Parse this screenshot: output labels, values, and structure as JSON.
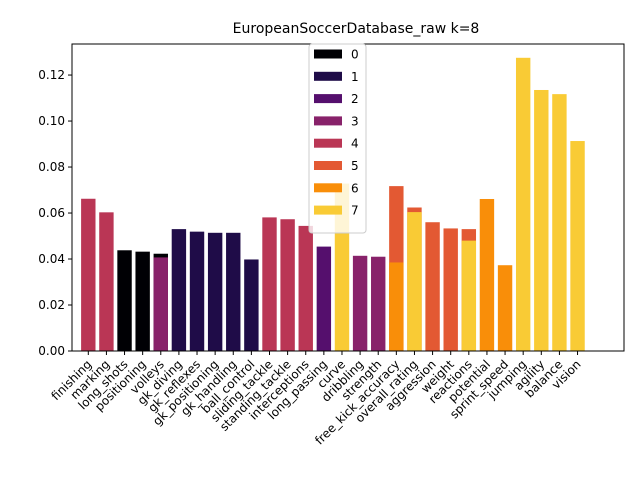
{
  "chart_data": {
    "type": "bar",
    "title": "EuropeanSoccerDatabase_raw k=8",
    "xlabel": "",
    "ylabel": "",
    "ylim": [
      0,
      0.1335
    ],
    "yticks": [
      "0.00",
      "0.02",
      "0.04",
      "0.06",
      "0.08",
      "0.10",
      "0.12"
    ],
    "legend_placement": "upper-center",
    "cluster_colors": [
      "#000004",
      "#1f0c48",
      "#550f6d",
      "#88226a",
      "#ba3655",
      "#e35933",
      "#f98e09",
      "#f9cb35"
    ],
    "legend": [
      "0",
      "1",
      "2",
      "3",
      "4",
      "5",
      "6",
      "7"
    ],
    "categories": [
      "finishing",
      "marking",
      "long_shots",
      "positioning",
      "volleys",
      "gk_diving",
      "gk_reflexes",
      "gk_positioning",
      "gk_handling",
      "ball_control",
      "sliding_tackle",
      "standing_tackle",
      "interceptions",
      "long_passing",
      "curve",
      "dribbling",
      "strength",
      "free_kick_accuracy",
      "overall_rating",
      "aggression",
      "weight",
      "reactions",
      "potential",
      "sprint_speed",
      "jumping",
      "agility",
      "balance",
      "vision"
    ],
    "bars": [
      {
        "category": "finishing",
        "cluster": 4,
        "value": 0.0662
      },
      {
        "category": "marking",
        "cluster": 4,
        "value": 0.0603
      },
      {
        "category": "long_shots",
        "cluster": 0,
        "value": 0.0438
      },
      {
        "category": "positioning",
        "cluster": 0,
        "value": 0.0432
      },
      {
        "category": "volleys",
        "cluster": 0,
        "value": 0.0423
      },
      {
        "category": "volleys",
        "cluster": 3,
        "value": 0.0407
      },
      {
        "category": "gk_diving",
        "cluster": 1,
        "value": 0.053
      },
      {
        "category": "gk_reflexes",
        "cluster": 1,
        "value": 0.0519
      },
      {
        "category": "gk_positioning",
        "cluster": 1,
        "value": 0.0514
      },
      {
        "category": "gk_handling",
        "cluster": 1,
        "value": 0.0514
      },
      {
        "category": "ball_control",
        "cluster": 1,
        "value": 0.0398
      },
      {
        "category": "sliding_tackle",
        "cluster": 4,
        "value": 0.0581
      },
      {
        "category": "standing_tackle",
        "cluster": 4,
        "value": 0.0573
      },
      {
        "category": "interceptions",
        "cluster": 4,
        "value": 0.0544
      },
      {
        "category": "long_passing",
        "cluster": 2,
        "value": 0.0454
      },
      {
        "category": "curve",
        "cluster": 7,
        "value": 0.0728
      },
      {
        "category": "dribbling",
        "cluster": 3,
        "value": 0.0414
      },
      {
        "category": "strength",
        "cluster": 3,
        "value": 0.041
      },
      {
        "category": "free_kick_accuracy",
        "cluster": 5,
        "value": 0.0717
      },
      {
        "category": "free_kick_accuracy",
        "cluster": 6,
        "value": 0.0385
      },
      {
        "category": "overall_rating",
        "cluster": 5,
        "value": 0.0624
      },
      {
        "category": "overall_rating",
        "cluster": 7,
        "value": 0.0604
      },
      {
        "category": "aggression",
        "cluster": 5,
        "value": 0.056
      },
      {
        "category": "weight",
        "cluster": 5,
        "value": 0.0533
      },
      {
        "category": "reactions",
        "cluster": 5,
        "value": 0.053
      },
      {
        "category": "reactions",
        "cluster": 7,
        "value": 0.048
      },
      {
        "category": "potential",
        "cluster": 6,
        "value": 0.0661
      },
      {
        "category": "sprint_speed",
        "cluster": 6,
        "value": 0.0373
      },
      {
        "category": "jumping",
        "cluster": 7,
        "value": 0.1275
      },
      {
        "category": "agility",
        "cluster": 7,
        "value": 0.1135
      },
      {
        "category": "balance",
        "cluster": 7,
        "value": 0.1117
      },
      {
        "category": "vision",
        "cluster": 7,
        "value": 0.0913
      }
    ]
  }
}
